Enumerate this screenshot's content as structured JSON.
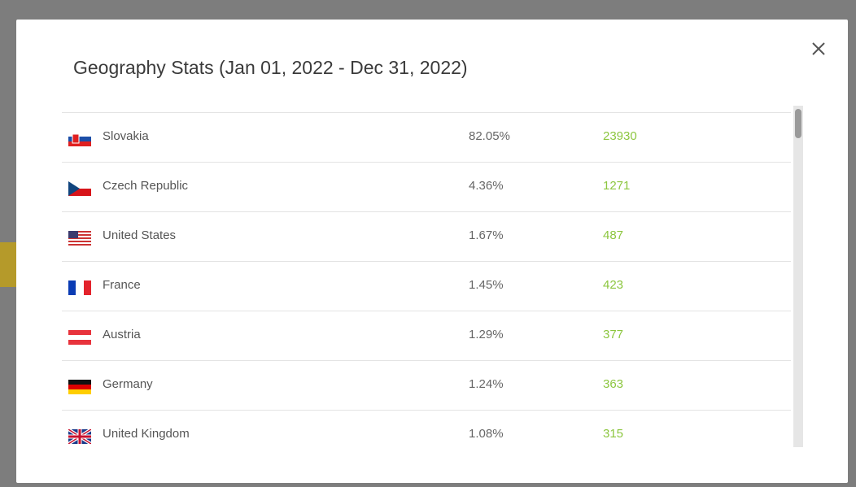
{
  "dialog": {
    "title": "Geography Stats (Jan 01, 2022 - Dec 31, 2022)",
    "rows": [
      {
        "country": "Slovakia",
        "percent": "82.05%",
        "count": 23930
      },
      {
        "country": "Czech Republic",
        "percent": "4.36%",
        "count": 1271
      },
      {
        "country": "United States",
        "percent": "1.67%",
        "count": 487
      },
      {
        "country": "France",
        "percent": "1.45%",
        "count": 423
      },
      {
        "country": "Austria",
        "percent": "1.29%",
        "count": 377
      },
      {
        "country": "Germany",
        "percent": "1.24%",
        "count": 363
      },
      {
        "country": "United Kingdom",
        "percent": "1.08%",
        "count": 315
      }
    ]
  }
}
